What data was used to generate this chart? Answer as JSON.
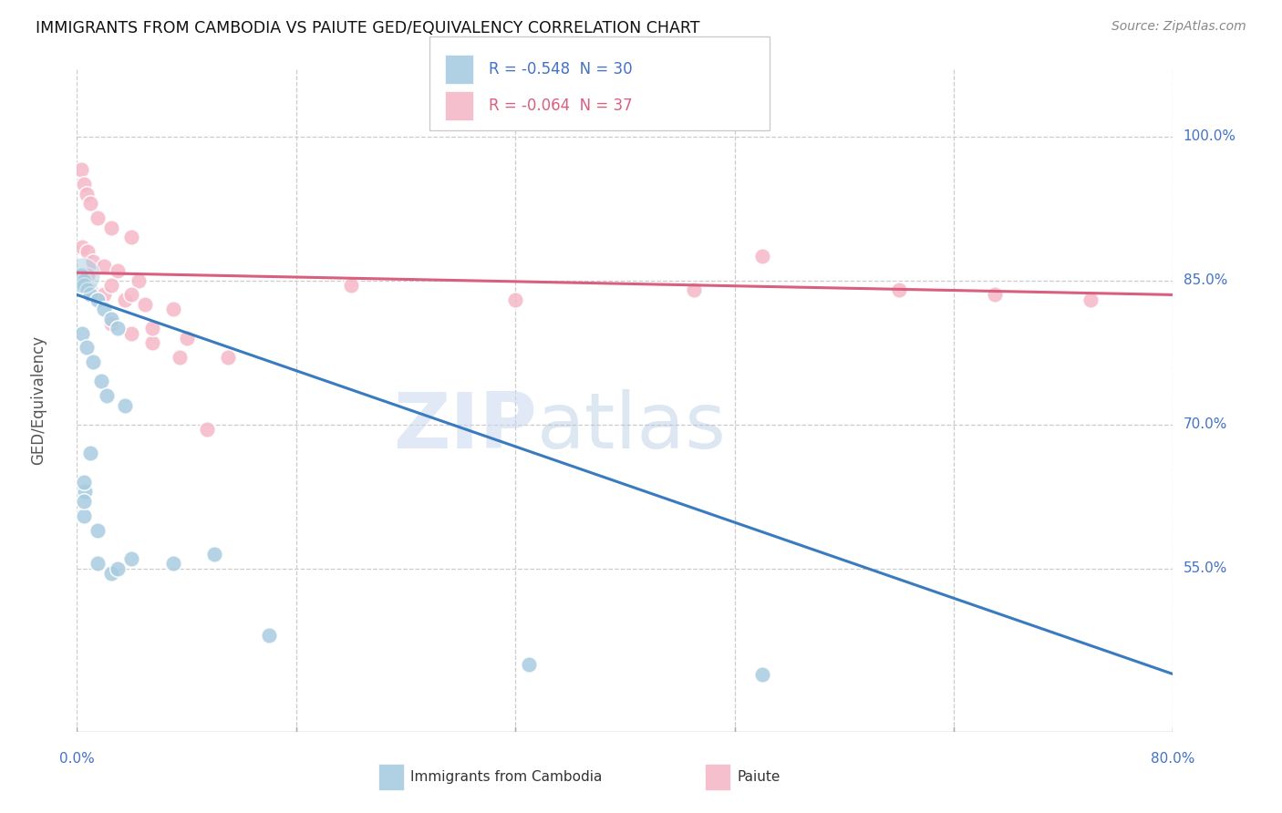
{
  "title": "IMMIGRANTS FROM CAMBODIA VS PAIUTE GED/EQUIVALENCY CORRELATION CHART",
  "source": "Source: ZipAtlas.com",
  "ylabel": "GED/Equivalency",
  "xlim": [
    0.0,
    80.0
  ],
  "ylim": [
    38.0,
    107.0
  ],
  "ytick_vals": [
    55.0,
    70.0,
    85.0,
    100.0
  ],
  "xtick_vals": [
    0.0,
    16.0,
    32.0,
    48.0,
    64.0,
    80.0
  ],
  "xtick_labels": [
    "0.0%",
    "",
    "",
    "",
    "",
    "80.0%"
  ],
  "legend_blue_label": "R = -0.548  N = 30",
  "legend_pink_label": "R = -0.064  N = 37",
  "blue_color": "#a8cce0",
  "pink_color": "#f5b8c8",
  "blue_line_color": "#3a7bbf",
  "pink_line_color": "#d95f7f",
  "cambodia_x": [
    0.3,
    0.5,
    0.5,
    0.8,
    1.0,
    1.5,
    2.0,
    2.5,
    3.0,
    0.4,
    0.7,
    1.2,
    1.8,
    2.2,
    3.5,
    0.6,
    1.0,
    4.0,
    7.0,
    10.0,
    0.5,
    0.5,
    0.5,
    1.5,
    1.5,
    2.5,
    3.0,
    33.0,
    50.0,
    14.0
  ],
  "cambodia_y": [
    85.5,
    85.0,
    84.5,
    84.0,
    83.5,
    83.0,
    82.0,
    81.0,
    80.0,
    79.5,
    78.0,
    76.5,
    74.5,
    73.0,
    72.0,
    63.0,
    67.0,
    56.0,
    55.5,
    56.5,
    60.5,
    62.0,
    64.0,
    59.0,
    55.5,
    54.5,
    55.0,
    45.0,
    44.0,
    48.0
  ],
  "paiute_x": [
    0.3,
    0.5,
    0.7,
    1.0,
    1.5,
    2.5,
    4.0,
    0.4,
    0.8,
    1.2,
    2.0,
    3.0,
    4.5,
    0.5,
    1.0,
    2.0,
    3.5,
    5.0,
    7.0,
    2.5,
    4.0,
    5.5,
    7.5,
    9.5,
    50.0,
    60.0,
    67.0,
    74.0,
    0.8,
    2.5,
    4.0,
    5.5,
    8.0,
    11.0,
    20.0,
    32.0,
    45.0
  ],
  "paiute_y": [
    96.5,
    95.0,
    94.0,
    93.0,
    91.5,
    90.5,
    89.5,
    88.5,
    88.0,
    87.0,
    86.5,
    86.0,
    85.0,
    84.5,
    84.0,
    83.5,
    83.0,
    82.5,
    82.0,
    80.5,
    79.5,
    78.5,
    77.0,
    69.5,
    87.5,
    84.0,
    83.5,
    83.0,
    85.5,
    84.5,
    83.5,
    80.0,
    79.0,
    77.0,
    84.5,
    83.0,
    84.0
  ],
  "blue_trend_x": [
    0.0,
    80.0
  ],
  "blue_trend_y": [
    83.5,
    44.0
  ],
  "pink_trend_x": [
    0.0,
    80.0
  ],
  "pink_trend_y": [
    85.8,
    83.5
  ],
  "large_cluster_x": 0.4,
  "large_cluster_y": 85.5,
  "large_cluster_size": 800
}
